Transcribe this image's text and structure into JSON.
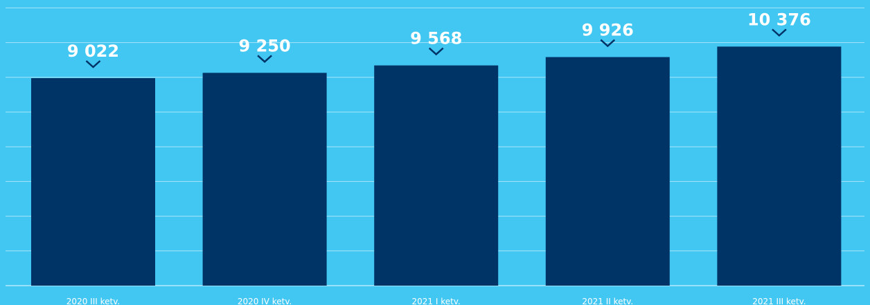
{
  "chart_data": {
    "type": "bar",
    "categories": [
      "2020 III ketv.",
      "2020 IV ketv.",
      "2021 I ketv.",
      "2021 II ketv.",
      "2021 III ketv."
    ],
    "values": [
      9022,
      9250,
      9568,
      9926,
      10376
    ],
    "value_labels": [
      "9 022",
      "9 250",
      "9 568",
      "9 926",
      "10 376"
    ],
    "grid": true,
    "colors": {
      "background": "#42C6F2",
      "bar": "#003366",
      "text": "#FFFFFF",
      "grid": "#FFFFFF"
    }
  }
}
